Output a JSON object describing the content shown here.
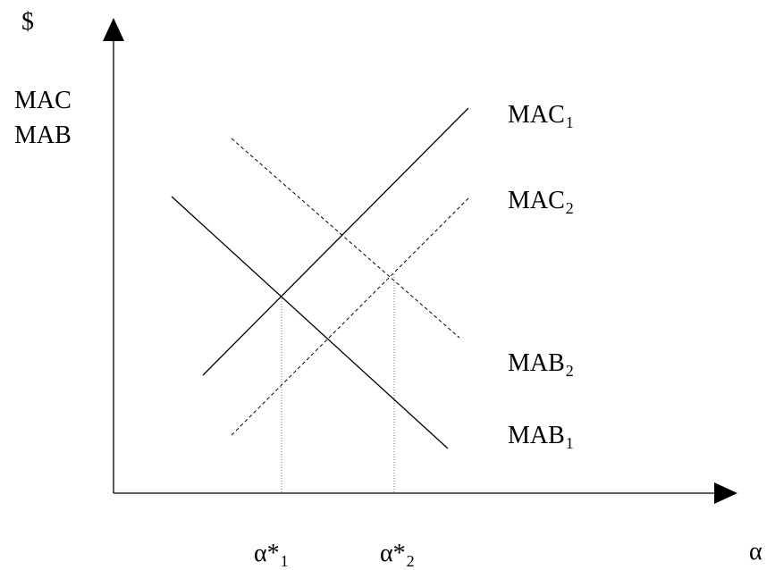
{
  "axes": {
    "y_title_currency": "$",
    "y_title_line1": "MAC",
    "y_title_line2": "MAB",
    "x_title": "α"
  },
  "curves": [
    {
      "base": "MAC",
      "sub": "1",
      "style": "solid"
    },
    {
      "base": "MAC",
      "sub": "2",
      "style": "dashed"
    },
    {
      "base": "MAB",
      "sub": "2",
      "style": "dashed"
    },
    {
      "base": "MAB",
      "sub": "1",
      "style": "solid"
    }
  ],
  "equilibria": [
    {
      "base": "α*",
      "sub": "1"
    },
    {
      "base": "α*",
      "sub": "2"
    }
  ],
  "colors": {
    "ink": "#000000",
    "background": "#ffffff"
  }
}
